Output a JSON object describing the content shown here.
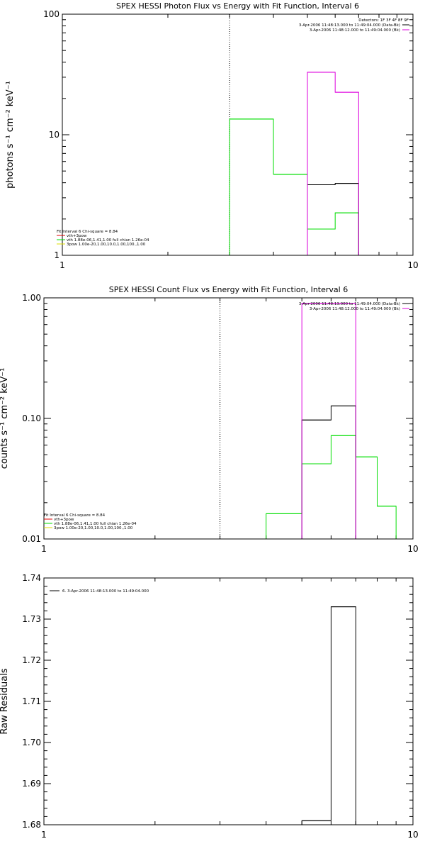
{
  "chart_data": [
    {
      "type": "line",
      "title": "SPEX HESSI Photon Flux vs Energy with Fit Function, Interval 6",
      "xlabel": "",
      "ylabel": "photons s⁻¹ cm⁻² keV⁻¹",
      "xscale": "log",
      "yscale": "log",
      "xlim": [
        1,
        10
      ],
      "ylim": [
        1,
        100
      ],
      "xticks": [
        {
          "v": 1,
          "label": "1"
        },
        {
          "v": 10,
          "label": "10"
        }
      ],
      "yticks": [
        {
          "v": 1,
          "label": "1"
        },
        {
          "v": 10,
          "label": "10"
        },
        {
          "v": 100,
          "label": "100"
        }
      ],
      "vline": 3,
      "legend_top": {
        "header": "Detectors: 1F 3F 4F 8F 9F",
        "entries": [
          {
            "text": "3-Apr-2006 11:48:13.000 to 11:49:04.000 (Data-Bk)",
            "color": "#000000"
          },
          {
            "text": "3-Apr-2006 11:48:12.000 to 11:49:04.000 (Bk)",
            "color": "#dd00dd"
          }
        ]
      },
      "legend_bottom": {
        "header": "Fit Interval  6    Chi-square = 8.84",
        "entries": [
          {
            "text": "vth+3pow",
            "color": "#dd0000"
          },
          {
            "text": "vth 1.88e-06,1.41,1.00  full chian 1.26e-04",
            "color": "#00dd00"
          },
          {
            "text": "3pow 1.00e-20,1.00,10.0,1.00,100.,1.00",
            "color": "#dddd00"
          }
        ]
      },
      "series": [
        {
          "color": "#00dd00",
          "bins": [
            {
              "x0": 3.0,
              "x1": 4.0,
              "y": 13.5
            },
            {
              "x0": 4.0,
              "x1": 5.0,
              "y": 4.7
            },
            {
              "x0": 5.0,
              "x1": 6.0,
              "y": 1.65
            },
            {
              "x0": 6.0,
              "x1": 7.0,
              "y": 2.25
            }
          ]
        },
        {
          "color": "#000000",
          "bins": [
            {
              "x0": 5.0,
              "x1": 6.0,
              "y": 3.85
            },
            {
              "x0": 6.0,
              "x1": 7.0,
              "y": 3.95
            }
          ]
        },
        {
          "color": "#dd00dd",
          "bins": [
            {
              "x0": 5.0,
              "x1": 6.0,
              "y": 33
            },
            {
              "x0": 6.0,
              "x1": 7.0,
              "y": 22.5
            }
          ]
        }
      ]
    },
    {
      "type": "line",
      "title": "SPEX HESSI Count Flux vs Energy with Fit Function, Interval 6",
      "xlabel": "",
      "ylabel": "counts s⁻¹ cm⁻² keV⁻¹",
      "xscale": "log",
      "yscale": "log",
      "xlim": [
        1,
        10
      ],
      "ylim": [
        0.01,
        1
      ],
      "xticks": [
        {
          "v": 1,
          "label": "1"
        },
        {
          "v": 10,
          "label": "10"
        }
      ],
      "yticks": [
        {
          "v": 0.01,
          "label": "0.01"
        },
        {
          "v": 0.1,
          "label": "0.10"
        },
        {
          "v": 1,
          "label": "1.00"
        }
      ],
      "vline": 3,
      "legend_top": {
        "header": "",
        "entries": [
          {
            "text": "3-Apr-2006 11:48:13.000 to 11:49:04.000 (Data-Bk)",
            "color": "#000000"
          },
          {
            "text": "3-Apr-2006 11:48:12.000 to 11:49:04.000 (Bk)",
            "color": "#dd00dd"
          }
        ]
      },
      "legend_bottom": {
        "header": "Fit Interval  6    Chi-square = 8.84",
        "entries": [
          {
            "text": "vth+3pow",
            "color": "#dd0000"
          },
          {
            "text": "vth 1.88e-06,1.41,1.00  full chian 1.26e-04",
            "color": "#00dd00"
          },
          {
            "text": "3pow 1.00e-20,1.00,10.0,1.00,100.,1.00",
            "color": "#dddd00"
          }
        ]
      },
      "series": [
        {
          "color": "#00dd00",
          "bins": [
            {
              "x0": 4.0,
              "x1": 5.0,
              "y": 0.0162
            },
            {
              "x0": 5.0,
              "x1": 6.0,
              "y": 0.042
            },
            {
              "x0": 6.0,
              "x1": 7.0,
              "y": 0.072
            },
            {
              "x0": 7.0,
              "x1": 8.0,
              "y": 0.048
            },
            {
              "x0": 8.0,
              "x1": 9.0,
              "y": 0.0187
            }
          ]
        },
        {
          "color": "#000000",
          "bins": [
            {
              "x0": 5.0,
              "x1": 6.0,
              "y": 0.097
            },
            {
              "x0": 6.0,
              "x1": 7.0,
              "y": 0.127
            }
          ]
        },
        {
          "color": "#dd00dd",
          "bins": [
            {
              "x0": 5.0,
              "x1": 6.0,
              "y": 0.9
            },
            {
              "x0": 6.0,
              "x1": 7.0,
              "y": 0.9
            }
          ]
        }
      ]
    },
    {
      "type": "line",
      "title": "",
      "xlabel": "",
      "ylabel": "Raw Residuals",
      "xscale": "log",
      "yscale": "linear",
      "xlim": [
        1,
        10
      ],
      "ylim": [
        1.68,
        1.74
      ],
      "xticks": [
        {
          "v": 1,
          "label": "1"
        },
        {
          "v": 10,
          "label": "10"
        }
      ],
      "yticks": [
        {
          "v": 1.68,
          "label": "1.68"
        },
        {
          "v": 1.69,
          "label": "1.69"
        },
        {
          "v": 1.7,
          "label": "1.70"
        },
        {
          "v": 1.71,
          "label": "1.71"
        },
        {
          "v": 1.72,
          "label": "1.72"
        },
        {
          "v": 1.73,
          "label": "1.73"
        },
        {
          "v": 1.74,
          "label": "1.74"
        }
      ],
      "legend_top_left": {
        "entries": [
          {
            "text": "6. 3-Apr-2006 11:48:13.000 to 11:49:04.000",
            "color": "#000000"
          }
        ]
      },
      "series": [
        {
          "color": "#000000",
          "bins": [
            {
              "x0": 5.0,
              "x1": 6.0,
              "y": 1.681
            },
            {
              "x0": 6.0,
              "x1": 7.0,
              "y": 1.733
            }
          ]
        }
      ]
    }
  ]
}
